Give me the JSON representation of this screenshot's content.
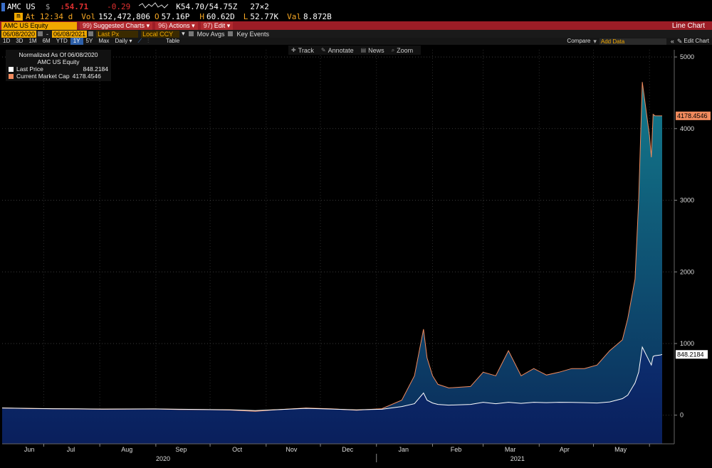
{
  "quote": {
    "ticker": "AMC US",
    "currency_symbol": "$",
    "arrow": "↓",
    "last": "54.71",
    "change": "-0.29",
    "bid_ask": "K54.70/54.75Z",
    "size": "27×2",
    "time_label": "At 12:34 d",
    "vol_label": "Vol",
    "vol": "152,472,806",
    "open_label": "O",
    "open": "57.16P",
    "high_label": "H",
    "high": "60.62D",
    "low_label": "L",
    "low": "52.77K",
    "val_label": "Val",
    "val": "8.872B"
  },
  "menubar": {
    "security": "AMC US Equity",
    "suggested_num": "99)",
    "suggested": "Suggested Charts",
    "actions_num": "96)",
    "actions": "Actions",
    "edit_num": "97)",
    "edit": "Edit",
    "title": "Line Chart"
  },
  "datebar": {
    "start": "06/08/2020",
    "end": "06/08/2021",
    "field": "Last Px",
    "ccy": "Local CCY",
    "mov_avgs": "Mov Avgs",
    "key_events": "Key Events"
  },
  "rangebar": {
    "ranges": [
      "1D",
      "3D",
      "1M",
      "6M",
      "YTD",
      "1Y",
      "5Y",
      "Max"
    ],
    "selected": "1Y",
    "period": "Daily",
    "table": "Table",
    "compare": "Compare",
    "add_data": "Add Data",
    "edit_chart": "Edit Chart"
  },
  "tools": [
    "Track",
    "Annotate",
    "News",
    "Zoom"
  ],
  "legend": {
    "normalized": "Normalized As Of 06/08/2020",
    "security": "AMC US Equity",
    "series": [
      {
        "name": "Last Price",
        "value": "848.2184",
        "color": "#ffffff"
      },
      {
        "name": "Current Market Cap",
        "value": "4178.4546",
        "color": "#f08a5d"
      }
    ]
  },
  "colors": {
    "background": "#000000",
    "price_line": "#ffffff",
    "mcap_line": "#f08a5d",
    "price_fill": "#0b2a6e",
    "mcap_fill": "#0f5a78",
    "amber": "#f0a800",
    "menubar": "#9c1d26"
  },
  "chart_data": {
    "type": "area",
    "yticks": [
      0,
      1000,
      2000,
      3000,
      4000,
      5000
    ],
    "ylim": [
      -400,
      5100
    ],
    "x_month_labels": [
      "Jun",
      "Jul",
      "Aug",
      "Sep",
      "Oct",
      "Nov",
      "Dec",
      "Jan",
      "Feb",
      "Mar",
      "Apr",
      "May"
    ],
    "x_year_labels": [
      "2020",
      "2021"
    ],
    "x": [
      "2020-06-08",
      "2020-06-22",
      "2020-07-06",
      "2020-07-20",
      "2020-08-03",
      "2020-08-17",
      "2020-08-31",
      "2020-09-14",
      "2020-09-28",
      "2020-10-12",
      "2020-10-26",
      "2020-11-09",
      "2020-11-23",
      "2020-12-07",
      "2020-12-21",
      "2021-01-04",
      "2021-01-15",
      "2021-01-22",
      "2021-01-27",
      "2021-01-29",
      "2021-02-01",
      "2021-02-04",
      "2021-02-10",
      "2021-02-22",
      "2021-03-01",
      "2021-03-08",
      "2021-03-15",
      "2021-03-22",
      "2021-03-29",
      "2021-04-05",
      "2021-04-12",
      "2021-04-19",
      "2021-04-26",
      "2021-05-03",
      "2021-05-10",
      "2021-05-17",
      "2021-05-20",
      "2021-05-24",
      "2021-05-26",
      "2021-05-28",
      "2021-06-01",
      "2021-06-02",
      "2021-06-03",
      "2021-06-04",
      "2021-06-07",
      "2021-06-08"
    ],
    "series": [
      {
        "name": "Last Price",
        "values": [
          100,
          95,
          90,
          88,
          85,
          86,
          87,
          82,
          80,
          76,
          65,
          80,
          95,
          85,
          75,
          82,
          120,
          160,
          310,
          210,
          170,
          150,
          140,
          150,
          180,
          160,
          180,
          165,
          180,
          175,
          180,
          178,
          175,
          170,
          185,
          230,
          280,
          450,
          600,
          950,
          750,
          700,
          820,
          830,
          840,
          848
        ]
      },
      {
        "name": "Current Market Cap",
        "values": [
          100,
          92,
          88,
          86,
          82,
          84,
          86,
          80,
          78,
          72,
          55,
          80,
          100,
          88,
          70,
          90,
          210,
          550,
          1200,
          800,
          550,
          430,
          380,
          400,
          600,
          550,
          900,
          550,
          650,
          560,
          600,
          650,
          650,
          700,
          900,
          1050,
          1350,
          1900,
          3000,
          4650,
          3900,
          3600,
          4200,
          4180,
          4178,
          4178
        ]
      }
    ]
  }
}
